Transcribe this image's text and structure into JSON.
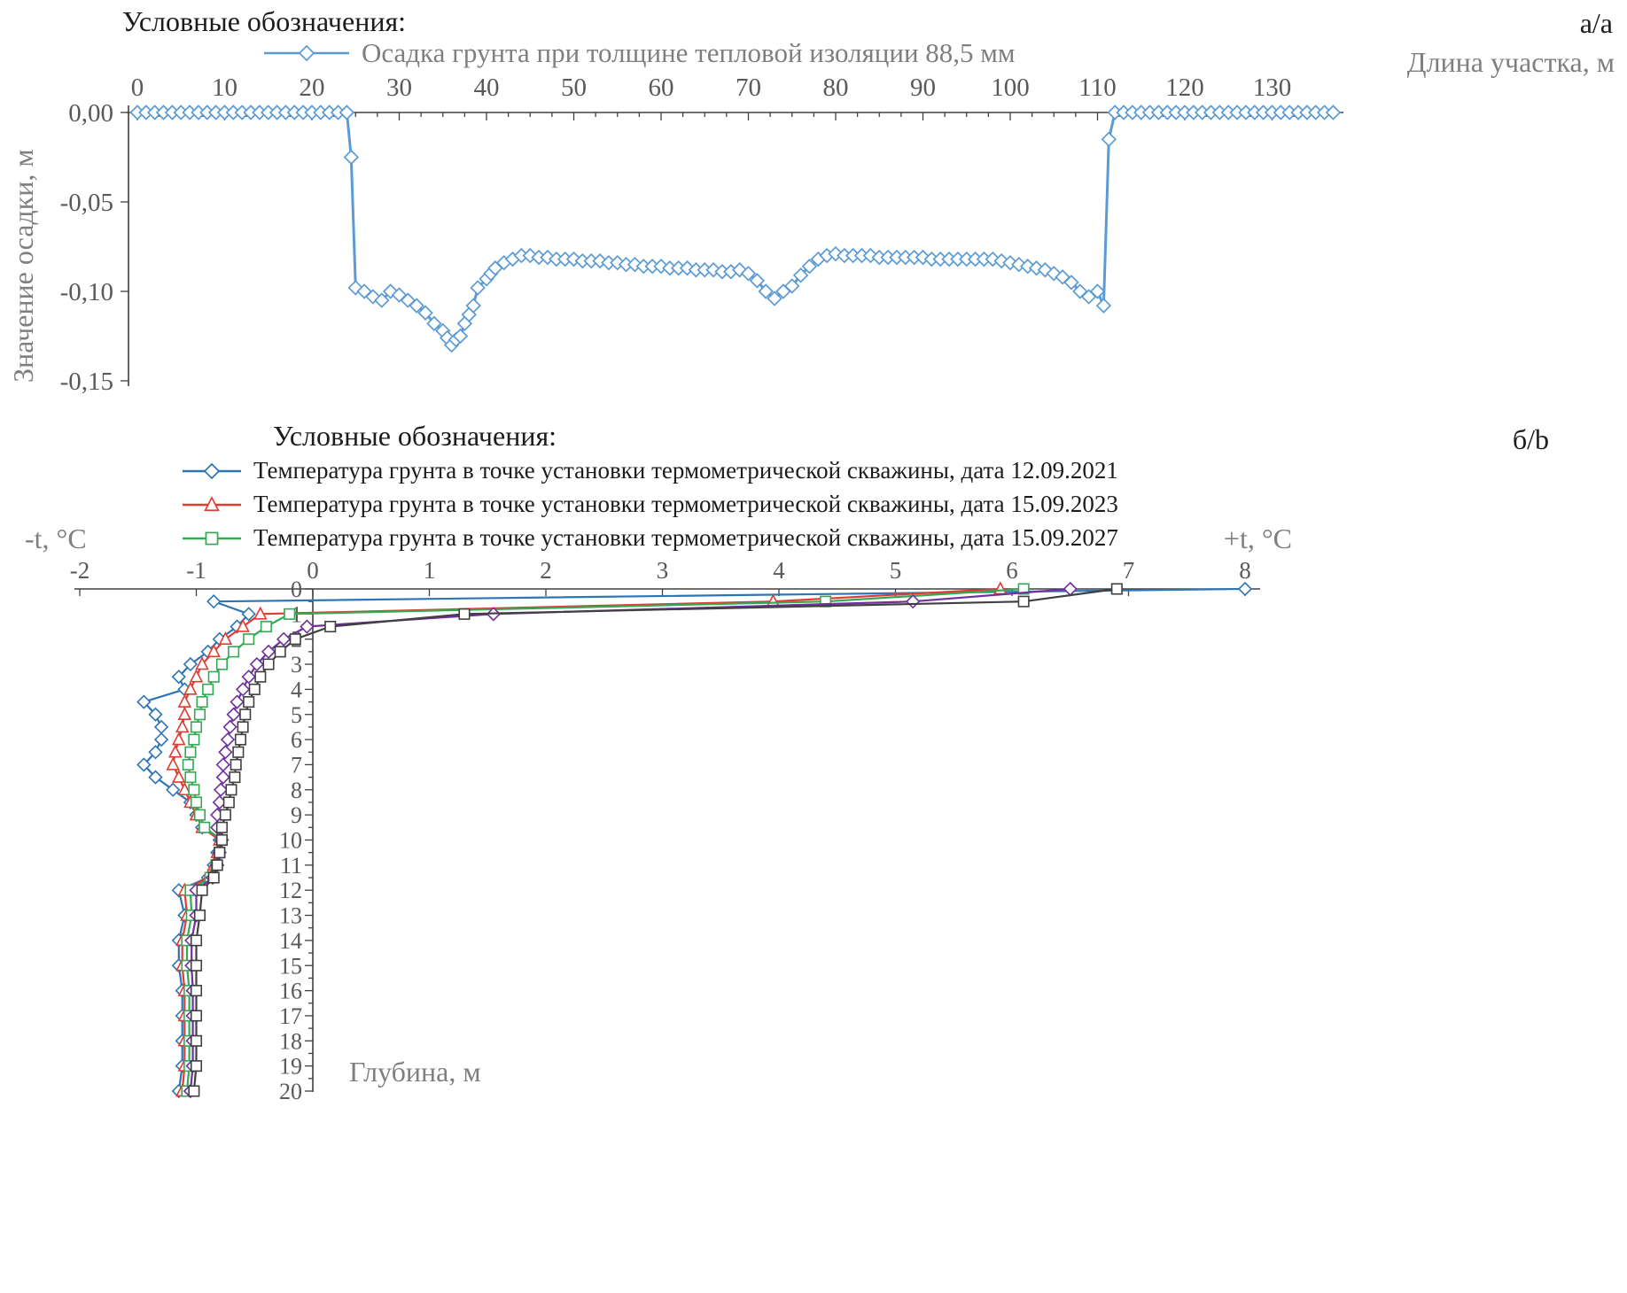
{
  "chart_a": {
    "corner_label": "а/a",
    "legend_title": "Условные обозначения:",
    "x_axis_title": "Длина участка, м",
    "y_axis_title": "Значение осадки, м",
    "legend": [
      {
        "label": "Осадка грунта при толщине тепловой изоляции 88,5 мм"
      }
    ]
  },
  "chart_b": {
    "corner_label": "б/b",
    "legend_title": "Условные обозначения:",
    "x_axis_title_left": "-t, °C",
    "x_axis_title_right": "+t, °C",
    "y_axis_title": "Глубина, м",
    "legend": [
      {
        "label": "Температура грунта в точке установки термометрической скважины, дата 12.09.2021"
      },
      {
        "label": "Температура грунта в точке установки термометрической скважины, дата 15.09.2023"
      },
      {
        "label": "Температура грунта в точке установки термометрической скважины, дата 15.09.2027"
      }
    ]
  },
  "chart_data": [
    {
      "id": "settlement-profile",
      "type": "line",
      "title": "",
      "xlabel": "Длина участка, м",
      "ylabel": "Значение осадки, м",
      "xlim": [
        0,
        138
      ],
      "ylim": [
        -0.16,
        0.005
      ],
      "grid": false,
      "legend_position": "top",
      "x_ticks": [
        0,
        10,
        20,
        30,
        40,
        50,
        60,
        70,
        80,
        90,
        100,
        110,
        120,
        130
      ],
      "y_ticks": [
        0,
        -0.05,
        -0.1,
        -0.15
      ],
      "y_tick_labels": [
        "0,00",
        "-0,05",
        "-0,10",
        "-0,15"
      ],
      "series": [
        {
          "name": "Осадка грунта при толщине тепловой изоляции 88,5 мм",
          "color": "#5B9BD5",
          "marker": "diamond",
          "x": [
            0,
            1,
            2,
            3,
            4,
            5,
            6,
            7,
            8,
            9,
            10,
            11,
            12,
            13,
            14,
            15,
            16,
            17,
            18,
            19,
            20,
            21,
            22,
            23,
            24,
            24.5,
            25,
            26,
            27,
            28,
            29,
            30,
            31,
            32,
            33,
            34,
            35,
            35.5,
            36,
            36.5,
            37,
            37.5,
            38,
            38.5,
            39,
            40,
            40.5,
            41,
            42,
            43,
            44,
            45,
            46,
            47,
            48,
            49,
            50,
            51,
            52,
            53,
            54,
            55,
            56,
            57,
            58,
            59,
            60,
            61,
            62,
            63,
            64,
            65,
            66,
            67,
            68,
            69,
            70,
            71,
            72,
            73,
            74,
            75,
            76,
            77,
            78,
            79,
            80,
            81,
            82,
            83,
            84,
            85,
            86,
            87,
            88,
            89,
            90,
            91,
            92,
            93,
            94,
            95,
            96,
            97,
            98,
            99,
            100,
            101,
            102,
            103,
            104,
            105,
            106,
            107,
            108,
            109,
            110,
            110.7,
            111.3,
            112,
            113,
            114,
            115,
            116,
            117,
            118,
            119,
            120,
            121,
            122,
            123,
            124,
            125,
            126,
            127,
            128,
            129,
            130,
            131,
            132,
            133,
            134,
            135,
            136,
            137
          ],
          "y": [
            0,
            0,
            0,
            0,
            0,
            0,
            0,
            0,
            0,
            0,
            0,
            0,
            0,
            0,
            0,
            0,
            0,
            0,
            0,
            0,
            0,
            0,
            0,
            0,
            0,
            -0.025,
            -0.098,
            -0.1,
            -0.103,
            -0.105,
            -0.1,
            -0.102,
            -0.105,
            -0.108,
            -0.112,
            -0.118,
            -0.122,
            -0.126,
            -0.13,
            -0.127,
            -0.125,
            -0.118,
            -0.113,
            -0.108,
            -0.098,
            -0.093,
            -0.09,
            -0.087,
            -0.084,
            -0.082,
            -0.08,
            -0.08,
            -0.081,
            -0.081,
            -0.082,
            -0.082,
            -0.082,
            -0.083,
            -0.083,
            -0.083,
            -0.084,
            -0.084,
            -0.085,
            -0.085,
            -0.086,
            -0.086,
            -0.086,
            -0.087,
            -0.087,
            -0.087,
            -0.088,
            -0.088,
            -0.088,
            -0.089,
            -0.089,
            -0.088,
            -0.09,
            -0.094,
            -0.1,
            -0.104,
            -0.1,
            -0.097,
            -0.091,
            -0.086,
            -0.082,
            -0.08,
            -0.079,
            -0.08,
            -0.08,
            -0.08,
            -0.08,
            -0.081,
            -0.081,
            -0.081,
            -0.081,
            -0.081,
            -0.081,
            -0.082,
            -0.082,
            -0.082,
            -0.082,
            -0.082,
            -0.082,
            -0.082,
            -0.082,
            -0.083,
            -0.084,
            -0.085,
            -0.086,
            -0.087,
            -0.088,
            -0.09,
            -0.092,
            -0.095,
            -0.1,
            -0.103,
            -0.1,
            -0.108,
            -0.015,
            0,
            0,
            0,
            0,
            0,
            0,
            0,
            0,
            0,
            0,
            0,
            0,
            0,
            0,
            0,
            0,
            0,
            0,
            0,
            0,
            0,
            0,
            0,
            0,
            0,
            0
          ]
        }
      ]
    },
    {
      "id": "ground-temperature-profiles",
      "type": "line",
      "title": "",
      "xlabel_left": "-t, °C",
      "xlabel_right": "+t, °C",
      "ylabel": "Глубина, м",
      "xlim": [
        -2,
        8
      ],
      "depth_lim": [
        0,
        20
      ],
      "grid": false,
      "legend_position": "top",
      "x_ticks": [
        -2,
        -1,
        0,
        1,
        2,
        3,
        4,
        5,
        6,
        7,
        8
      ],
      "depth_ticks": [
        0,
        1,
        2,
        3,
        4,
        5,
        6,
        7,
        8,
        9,
        10,
        11,
        12,
        13,
        14,
        15,
        16,
        17,
        18,
        19,
        20
      ],
      "depths": [
        0,
        0.5,
        1,
        1.5,
        2,
        2.5,
        3,
        3.5,
        4,
        4.5,
        5,
        5.5,
        6,
        6.5,
        7,
        7.5,
        8,
        8.5,
        9,
        9.5,
        10,
        10.5,
        11,
        11.5,
        12,
        13,
        14,
        15,
        16,
        17,
        18,
        19,
        20
      ],
      "series": [
        {
          "name": "Температура грунта в точке установки термометрической скважины, дата 12.09.2021",
          "color": "#2E75B6",
          "marker": "diamond",
          "t": [
            8.0,
            -0.85,
            -0.55,
            -0.65,
            -0.8,
            -0.9,
            -1.05,
            -1.15,
            -1.1,
            -1.45,
            -1.35,
            -1.3,
            -1.3,
            -1.35,
            -1.45,
            -1.35,
            -1.2,
            -1.05,
            -1.0,
            -0.95,
            -0.8,
            -0.82,
            -0.85,
            -0.9,
            -1.15,
            -1.1,
            -1.15,
            -1.15,
            -1.12,
            -1.12,
            -1.12,
            -1.12,
            -1.15
          ]
        },
        {
          "name": "Температура грунта в точке установки термометрической скважины, дата 15.09.2023",
          "color": "#E03C31",
          "marker": "triangle",
          "t": [
            5.9,
            3.95,
            -0.45,
            -0.6,
            -0.75,
            -0.85,
            -0.95,
            -1.0,
            -1.05,
            -1.1,
            -1.1,
            -1.12,
            -1.15,
            -1.18,
            -1.2,
            -1.15,
            -1.1,
            -1.05,
            -1.0,
            -0.95,
            -0.8,
            -0.82,
            -0.85,
            -0.9,
            -1.1,
            -1.08,
            -1.12,
            -1.12,
            -1.1,
            -1.1,
            -1.1,
            -1.1,
            -1.12
          ]
        },
        {
          "name": "Температура грунта в точке установки термометрической скважины, дата 15.09.2027",
          "color": "#34A853",
          "marker": "square",
          "t": [
            6.1,
            4.4,
            -0.2,
            -0.4,
            -0.55,
            -0.68,
            -0.78,
            -0.85,
            -0.9,
            -0.95,
            -0.97,
            -1.0,
            -1.02,
            -1.05,
            -1.07,
            -1.05,
            -1.02,
            -1.0,
            -0.97,
            -0.93,
            -0.78,
            -0.8,
            -0.83,
            -0.88,
            -1.05,
            -1.04,
            -1.08,
            -1.08,
            -1.06,
            -1.06,
            -1.06,
            -1.06,
            -1.08
          ]
        },
        {
          "name": "",
          "color": "#7030A0",
          "marker": "diamond",
          "t": [
            6.5,
            5.15,
            1.55,
            -0.05,
            -0.25,
            -0.38,
            -0.48,
            -0.55,
            -0.6,
            -0.65,
            -0.68,
            -0.71,
            -0.73,
            -0.75,
            -0.77,
            -0.77,
            -0.79,
            -0.8,
            -0.82,
            -0.82,
            -0.78,
            -0.8,
            -0.82,
            -0.86,
            -1.0,
            -1.0,
            -1.04,
            -1.04,
            -1.03,
            -1.03,
            -1.03,
            -1.03,
            -1.05
          ]
        },
        {
          "name": "",
          "color": "#404040",
          "marker": "square",
          "t": [
            6.9,
            6.1,
            1.3,
            0.15,
            -0.15,
            -0.28,
            -0.38,
            -0.45,
            -0.5,
            -0.55,
            -0.58,
            -0.6,
            -0.62,
            -0.64,
            -0.66,
            -0.67,
            -0.7,
            -0.72,
            -0.75,
            -0.78,
            -0.78,
            -0.8,
            -0.82,
            -0.85,
            -0.95,
            -0.97,
            -1.0,
            -1.0,
            -1.0,
            -1.0,
            -1.0,
            -1.0,
            -1.02
          ]
        }
      ]
    }
  ]
}
